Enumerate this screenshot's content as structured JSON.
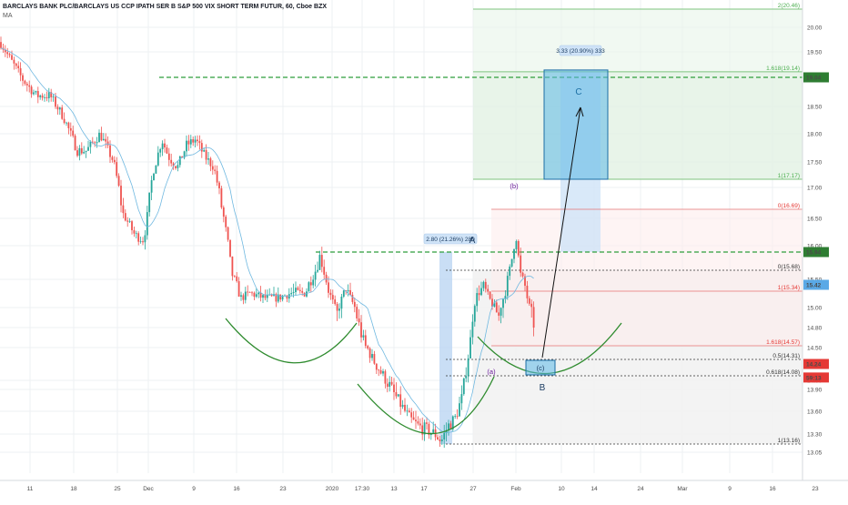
{
  "header": {
    "title": "BARCLAYS BANK PLC/BARCLAYS US CCP IPATH SER B S&P 500 VIX SHORT TERM FUTUR, 60, Cboe BZX",
    "indicator": "MA"
  },
  "colors": {
    "up": "#26a69a",
    "down": "#ef5350",
    "ma": "#6fb8e0",
    "green_line": "#2e9e3c",
    "curve": "#2e8b2e",
    "fib_green": "#7fc47f",
    "fib_red": "#e57373",
    "box_blue": "#5bb8e6",
    "tag_green": "#2e7d32",
    "tag_red": "#e53935",
    "tag_blue": "#5aa9e6"
  },
  "chart_data": {
    "type": "candlestick",
    "ylim": [
      12.9,
      20.65
    ],
    "y_ticks": [
      "20.00",
      "19.50",
      "18.50",
      "18.00",
      "17.50",
      "17.00",
      "16.50",
      "16.00",
      "15.50",
      "15.00",
      "14.80",
      "14.50",
      "14.00",
      "13.90",
      "13.60",
      "13.30",
      "13.05"
    ],
    "x_ticks": [
      "11",
      "18",
      "25",
      "Dec",
      "9",
      "16",
      "23",
      "2020",
      "17:30",
      "13",
      "17",
      "27",
      "Feb",
      "10",
      "14",
      "24",
      "Mar",
      "9",
      "16",
      "23"
    ],
    "price_tags": [
      {
        "label": "19.04",
        "value": 19.04,
        "kind": "green"
      },
      {
        "label": "15.94",
        "value": 15.94,
        "kind": "green"
      },
      {
        "label": "15.42",
        "value": 15.42,
        "kind": "blue"
      },
      {
        "label": "14.24",
        "value": 14.24,
        "kind": "red"
      },
      {
        "label": "59:13",
        "value": 14.05,
        "kind": "red"
      }
    ],
    "fib_up": [
      {
        "label": "2(20.46)",
        "value": 20.46
      },
      {
        "label": "1.618(19.14)",
        "value": 19.14
      },
      {
        "label": "1(17.17)",
        "value": 17.17
      }
    ],
    "fib_down": [
      {
        "label": "0(16.69)",
        "value": 16.69,
        "color": "red"
      },
      {
        "label": "0(15.68)",
        "value": 15.68,
        "color": "dark"
      },
      {
        "label": "1(15.34)",
        "value": 15.34,
        "color": "red"
      },
      {
        "label": "1.618(14.57)",
        "value": 14.57,
        "color": "red"
      },
      {
        "label": "0.5(14.31)",
        "value": 14.31,
        "color": "dark"
      },
      {
        "label": "0.618(14.08)",
        "value": 14.08,
        "color": "dark"
      },
      {
        "label": "1(13.16)",
        "value": 13.16,
        "color": "dark"
      }
    ],
    "measure_labels": [
      {
        "text": "3.33 (20.90%) 333"
      },
      {
        "text": "2.80 (21.26%) 280"
      }
    ],
    "wave_labels": [
      "A",
      "B",
      "C",
      "(a)",
      "(b)",
      "(c)"
    ]
  }
}
